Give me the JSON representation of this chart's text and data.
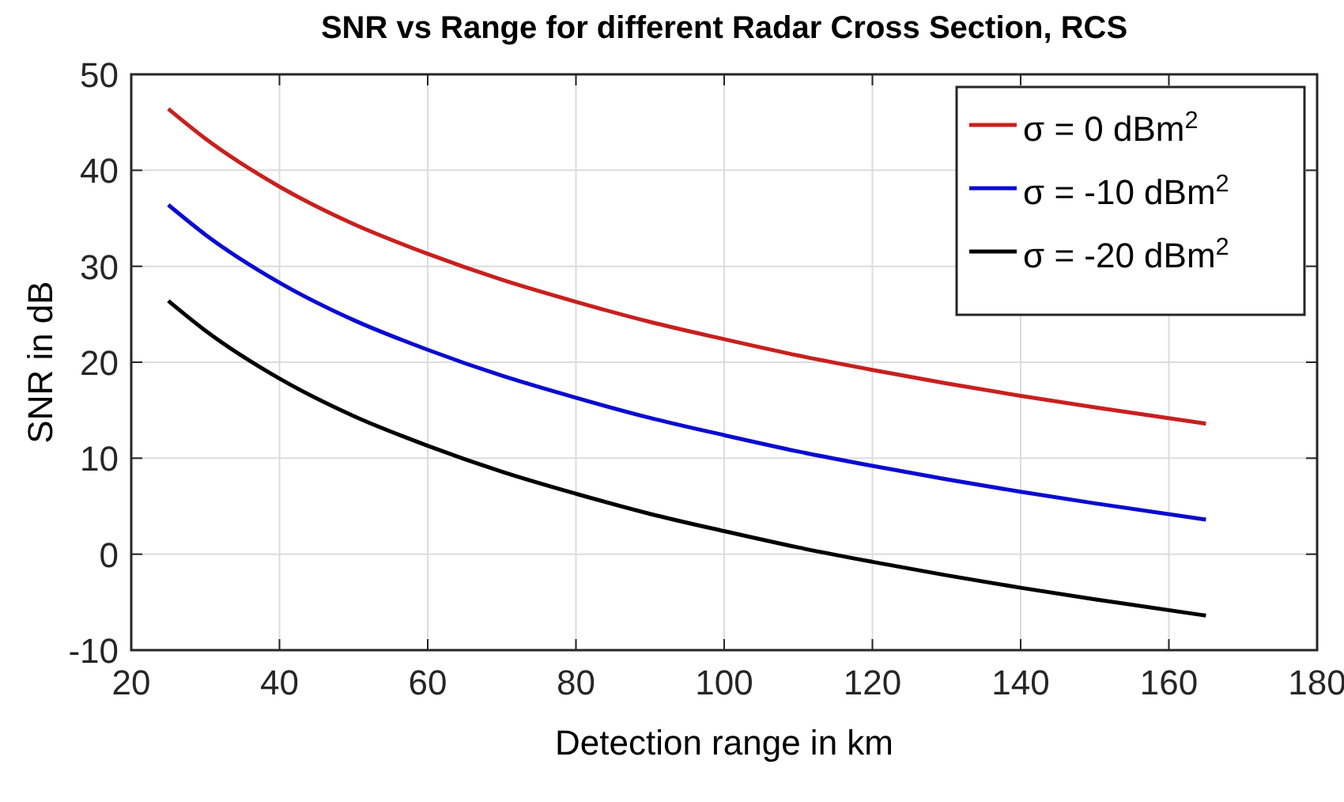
{
  "chart_data": {
    "type": "line",
    "title": "SNR vs Range for different Radar Cross Section, RCS",
    "xlabel": "Detection range in km",
    "ylabel": "SNR in dB",
    "x": [
      25,
      30,
      40,
      50,
      60,
      70,
      80,
      90,
      100,
      110,
      120,
      130,
      140,
      150,
      165
    ],
    "series": [
      {
        "name": "σ = 0 dBm$^{2}$",
        "color": "#c8201e",
        "values": [
          46.4,
          43.3,
          38.3,
          34.4,
          31.3,
          28.6,
          26.3,
          24.2,
          22.4,
          20.7,
          19.2,
          17.8,
          16.5,
          15.3,
          13.6
        ]
      },
      {
        "name": "σ = -10 dBm$^{2}$",
        "color": "#0a0ad2",
        "values": [
          36.4,
          33.3,
          28.3,
          24.4,
          21.3,
          18.6,
          16.3,
          14.2,
          12.4,
          10.7,
          9.2,
          7.8,
          6.5,
          5.3,
          3.6
        ]
      },
      {
        "name": "σ = -20 dBm$^{2}$",
        "color": "#000000",
        "values": [
          26.4,
          23.3,
          18.3,
          14.4,
          11.3,
          8.6,
          6.3,
          4.2,
          2.4,
          0.7,
          -0.8,
          -2.2,
          -3.5,
          -4.7,
          -6.4
        ]
      }
    ],
    "xlim": [
      20,
      180
    ],
    "xticks": [
      20,
      40,
      60,
      80,
      100,
      120,
      140,
      160,
      180
    ],
    "ylim": [
      -10,
      50
    ],
    "yticks": [
      -10,
      0,
      10,
      20,
      30,
      40,
      50
    ],
    "grid": true,
    "legend": "top right",
    "line_style": "solid"
  }
}
